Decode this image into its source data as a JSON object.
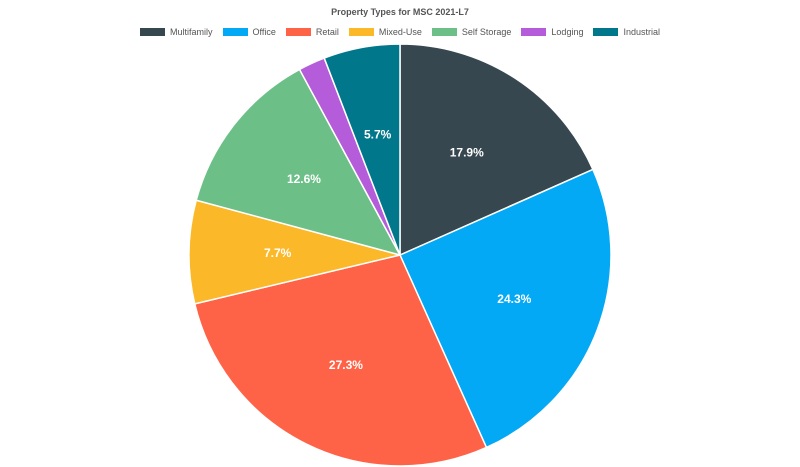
{
  "chart_data": {
    "type": "pie",
    "title": "Property Types for MSC 2021-L7",
    "legend_position": "top",
    "slices": [
      {
        "name": "Multifamily",
        "value": 17.9,
        "label": "17.9%",
        "color": "#37474f"
      },
      {
        "name": "Office",
        "value": 24.3,
        "label": "24.3%",
        "color": "#03a9f4"
      },
      {
        "name": "Retail",
        "value": 27.3,
        "label": "27.3%",
        "color": "#ff6347"
      },
      {
        "name": "Mixed-Use",
        "value": 7.7,
        "label": "7.7%",
        "color": "#fbb829"
      },
      {
        "name": "Self Storage",
        "value": 12.6,
        "label": "12.6%",
        "color": "#6cc087"
      },
      {
        "name": "Lodging",
        "value": 2.0,
        "label": "",
        "color": "#b45cd9"
      },
      {
        "name": "Industrial",
        "value": 5.7,
        "label": "5.7%",
        "color": "#00778b"
      }
    ]
  }
}
